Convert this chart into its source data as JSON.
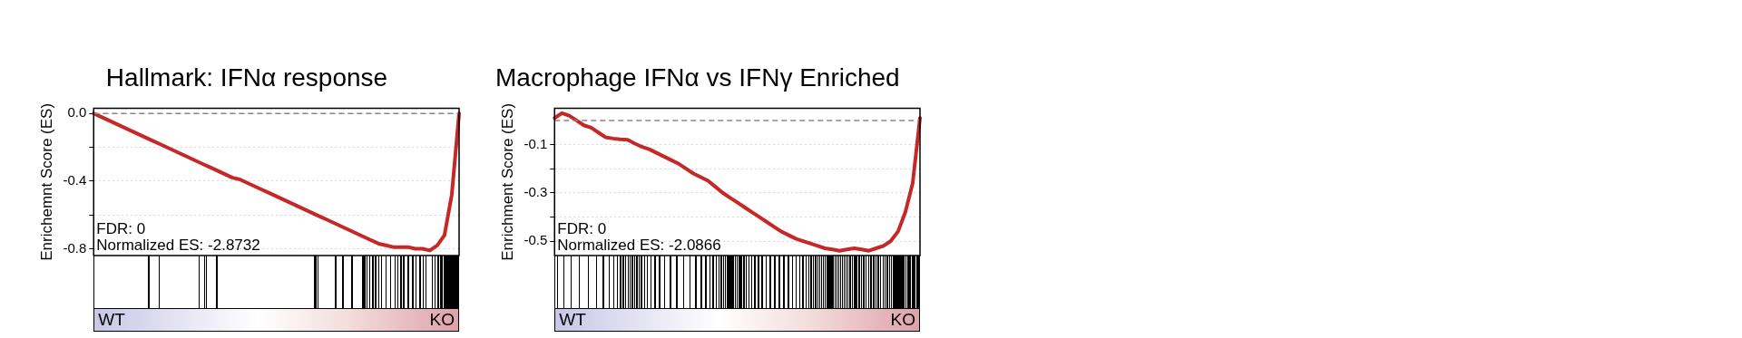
{
  "chart_data": [
    {
      "type": "line",
      "title": "Hallmark: IFNα response",
      "ylabel": "Enrichemnt Score (ES)",
      "categories": [
        null,
        null,
        null,
        null,
        null,
        null,
        null,
        null,
        null,
        null,
        null,
        null,
        null,
        null,
        null,
        null,
        null,
        null,
        null,
        null,
        null,
        null,
        null,
        null,
        null,
        null,
        null,
        null,
        null,
        null,
        null,
        null,
        null,
        null,
        null,
        null,
        null,
        null,
        null,
        null,
        null,
        null,
        null,
        null,
        null,
        null,
        null,
        null,
        null,
        null,
        null
      ],
      "values": [
        0,
        -0.02,
        -0.04,
        -0.06,
        -0.08,
        -0.1,
        -0.12,
        -0.14,
        -0.16,
        -0.18,
        -0.2,
        -0.22,
        -0.24,
        -0.26,
        -0.28,
        -0.3,
        -0.32,
        -0.34,
        -0.36,
        -0.38,
        -0.39,
        -0.41,
        -0.43,
        -0.45,
        -0.47,
        -0.49,
        -0.51,
        -0.53,
        -0.55,
        -0.57,
        -0.59,
        -0.61,
        -0.63,
        -0.65,
        -0.67,
        -0.69,
        -0.71,
        -0.73,
        -0.75,
        -0.77,
        -0.78,
        -0.79,
        -0.79,
        -0.79,
        -0.8,
        -0.8,
        -0.81,
        -0.78,
        -0.72,
        -0.48,
        0
      ],
      "color": "#c62828",
      "marker": "none",
      "line_style": "solid",
      "ylim": [
        -0.84,
        0.03
      ],
      "yticks": [
        {
          "value": 0,
          "label": "0.0"
        },
        {
          "value": -0.2,
          "label": null
        },
        -0.4,
        {
          "value": -0.6,
          "label": null
        },
        -0.8
      ],
      "grid": "y",
      "tick_labels": "y",
      "legend": false,
      "ref_lines": [
        {
          "axis": "y",
          "value": 0,
          "color": "#888888",
          "line_style": "dashed"
        }
      ],
      "annotations": [
        "FDR: 0",
        "Normalized ES: -2.8732",
        "WT",
        "KO"
      ]
    },
    {
      "type": "line",
      "title": "Macrophage IFNα vs IFNγ Enriched",
      "ylabel": "Enrichment Score (ES)",
      "categories": [
        null,
        null,
        null,
        null,
        null,
        null,
        null,
        null,
        null,
        null,
        null,
        null,
        null,
        null,
        null,
        null,
        null,
        null,
        null,
        null,
        null,
        null,
        null,
        null,
        null,
        null,
        null,
        null,
        null,
        null,
        null,
        null,
        null,
        null,
        null,
        null,
        null,
        null,
        null,
        null,
        null,
        null,
        null,
        null,
        null,
        null,
        null,
        null,
        null,
        null,
        null
      ],
      "values": [
        0.01,
        0.03,
        0.02,
        0,
        -0.02,
        -0.03,
        -0.05,
        -0.07,
        -0.075,
        -0.078,
        -0.08,
        -0.096,
        -0.11,
        -0.12,
        -0.135,
        -0.15,
        -0.165,
        -0.18,
        -0.2,
        -0.22,
        -0.235,
        -0.25,
        -0.275,
        -0.3,
        -0.32,
        -0.34,
        -0.36,
        -0.38,
        -0.4,
        -0.42,
        -0.44,
        -0.46,
        -0.475,
        -0.49,
        -0.5,
        -0.51,
        -0.52,
        -0.53,
        -0.535,
        -0.54,
        -0.535,
        -0.53,
        -0.535,
        -0.54,
        -0.53,
        -0.52,
        -0.5,
        -0.46,
        -0.38,
        -0.26,
        0.01
      ],
      "color": "#c62828",
      "marker": "none",
      "line_style": "solid",
      "ylim": [
        -0.56,
        0.05
      ],
      "yticks": [
        -0.1,
        {
          "value": -0.2,
          "label": null
        },
        -0.3,
        {
          "value": -0.4,
          "label": null
        },
        -0.5
      ],
      "grid": "y",
      "tick_labels": "y",
      "legend": false,
      "ref_lines": [
        {
          "axis": "y",
          "value": 0,
          "color": "#888888",
          "line_style": "dashed"
        }
      ],
      "annotations": [
        "FDR: 0",
        "Normalized ES: -2.0866",
        "WT",
        "KO"
      ]
    }
  ]
}
